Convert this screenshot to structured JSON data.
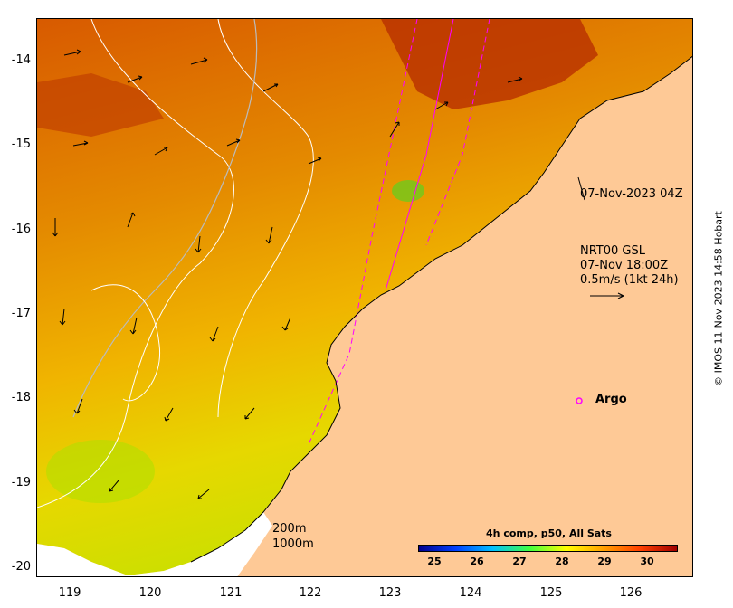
{
  "map": {
    "y_ticks": [
      "-14",
      "-15",
      "-16",
      "-17",
      "-18",
      "-19",
      "-20"
    ],
    "x_ticks": [
      "119",
      "120",
      "121",
      "122",
      "123",
      "124",
      "125",
      "126"
    ],
    "lat_range": [
      -20.1,
      -13.5
    ],
    "lon_range": [
      118.6,
      126.8
    ]
  },
  "annotations": {
    "timestamp": "07-Nov-2023 04Z",
    "current_product": "NRT00 GSL",
    "current_time": "07-Nov 18:00Z",
    "current_scale": "0.5m/s (1kt 24h)",
    "argo_label": "Argo",
    "contour_200": "200m",
    "contour_1000": "1000m"
  },
  "colorbar": {
    "title": "4h comp, p50, All Sats",
    "labels": [
      "25",
      "26",
      "27",
      "28",
      "29",
      "30"
    ],
    "colors": [
      "#00008f",
      "#0040ff",
      "#00c0ff",
      "#40ff40",
      "#ffff00",
      "#ffa000",
      "#ff4000",
      "#a00000"
    ]
  },
  "credit": "© IMOS 11-Nov-2023 14:58 Hobart",
  "colors": {
    "land": "#fec996",
    "argo": "#ff00ff",
    "track": "#ff00ff",
    "contour": "#ffffff",
    "shelf": "#bbbbbb"
  }
}
